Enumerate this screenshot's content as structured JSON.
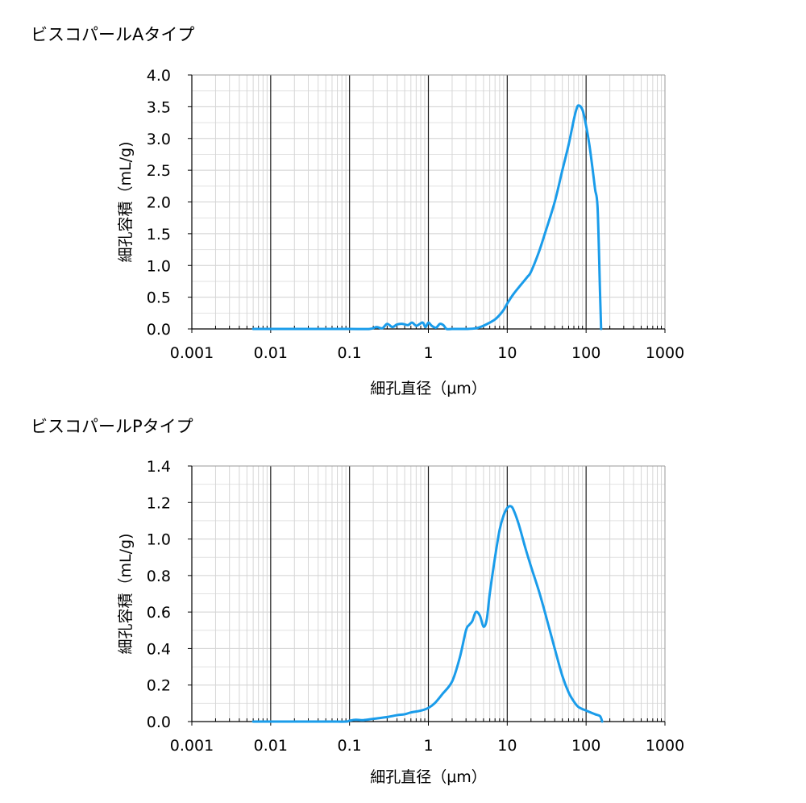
{
  "chart_data": [
    {
      "type": "line",
      "title": "ビスコパールAタイプ",
      "xlabel": "細孔直径（μm）",
      "ylabel": "細孔容積（mL/g)",
      "x_scale": "log",
      "xlim": [
        0.001,
        1000
      ],
      "ylim": [
        0,
        4.0
      ],
      "xticks": [
        0.001,
        0.01,
        0.1,
        1,
        10,
        100,
        1000
      ],
      "xtick_labels": [
        "0.001",
        "0.01",
        "0.1",
        "1",
        "10",
        "100",
        "1000"
      ],
      "yticks": [
        0,
        0.5,
        1.0,
        1.5,
        2.0,
        2.5,
        3.0,
        3.5,
        4.0
      ],
      "ytick_labels": [
        "0.0",
        "0.5",
        "1.0",
        "1.5",
        "2.0",
        "2.5",
        "3.0",
        "3.5",
        "4.0"
      ],
      "grid": true,
      "series": [
        {
          "color": "#1a9cea",
          "x": [
            0.006,
            0.01,
            0.05,
            0.1,
            0.18,
            0.22,
            0.26,
            0.3,
            0.35,
            0.4,
            0.47,
            0.55,
            0.62,
            0.7,
            0.78,
            0.85,
            0.92,
            1.0,
            1.1,
            1.25,
            1.4,
            1.55,
            1.7,
            2,
            3,
            4,
            5,
            6,
            7,
            8,
            9,
            10,
            12,
            15,
            18,
            20,
            25,
            30,
            40,
            50,
            60,
            70,
            75,
            80,
            90,
            100,
            110,
            120,
            130,
            140,
            150,
            155
          ],
          "y": [
            0,
            0,
            0,
            0,
            0,
            0.03,
            0.01,
            0.08,
            0.03,
            0.07,
            0.08,
            0.06,
            0.1,
            0.05,
            0.08,
            0.1,
            0.03,
            0.1,
            0.05,
            0.02,
            0.08,
            0.06,
            0,
            0,
            0,
            0.01,
            0.05,
            0.1,
            0.15,
            0.22,
            0.3,
            0.4,
            0.55,
            0.7,
            0.82,
            0.9,
            1.2,
            1.5,
            2.0,
            2.5,
            2.9,
            3.3,
            3.45,
            3.52,
            3.45,
            3.2,
            2.9,
            2.55,
            2.2,
            1.9,
            0.6,
            0
          ]
        }
      ]
    },
    {
      "type": "line",
      "title": "ビスコパールPタイプ",
      "xlabel": "細孔直径（μm）",
      "ylabel": "細孔容積（mL/g)",
      "x_scale": "log",
      "xlim": [
        0.001,
        1000
      ],
      "ylim": [
        0,
        1.4
      ],
      "xticks": [
        0.001,
        0.01,
        0.1,
        1,
        10,
        100,
        1000
      ],
      "xtick_labels": [
        "0.001",
        "0.01",
        "0.1",
        "1",
        "10",
        "100",
        "1000"
      ],
      "yticks": [
        0,
        0.2,
        0.4,
        0.6,
        0.8,
        1.0,
        1.2,
        1.4
      ],
      "ytick_labels": [
        "0.0",
        "0.2",
        "0.4",
        "0.6",
        "0.8",
        "1.0",
        "1.2",
        "1.4"
      ],
      "grid": true,
      "series": [
        {
          "color": "#1a9cea",
          "x": [
            0.006,
            0.01,
            0.05,
            0.09,
            0.1,
            0.12,
            0.15,
            0.2,
            0.3,
            0.4,
            0.5,
            0.6,
            0.8,
            1.0,
            1.2,
            1.5,
            2.0,
            2.5,
            3.0,
            3.3,
            3.6,
            4.0,
            4.5,
            5.0,
            5.5,
            6.0,
            7.0,
            8.0,
            9.0,
            10,
            11,
            12,
            14,
            17,
            20,
            25,
            30,
            40,
            50,
            60,
            70,
            80,
            100,
            130,
            150,
            160
          ],
          "y": [
            0,
            0,
            0,
            0,
            0.005,
            0.01,
            0.008,
            0.015,
            0.025,
            0.035,
            0.04,
            0.05,
            0.06,
            0.075,
            0.1,
            0.15,
            0.22,
            0.35,
            0.5,
            0.53,
            0.55,
            0.6,
            0.58,
            0.52,
            0.56,
            0.7,
            0.9,
            1.05,
            1.13,
            1.17,
            1.18,
            1.16,
            1.08,
            0.95,
            0.85,
            0.72,
            0.6,
            0.4,
            0.25,
            0.16,
            0.11,
            0.08,
            0.06,
            0.04,
            0.03,
            0
          ]
        }
      ]
    }
  ]
}
